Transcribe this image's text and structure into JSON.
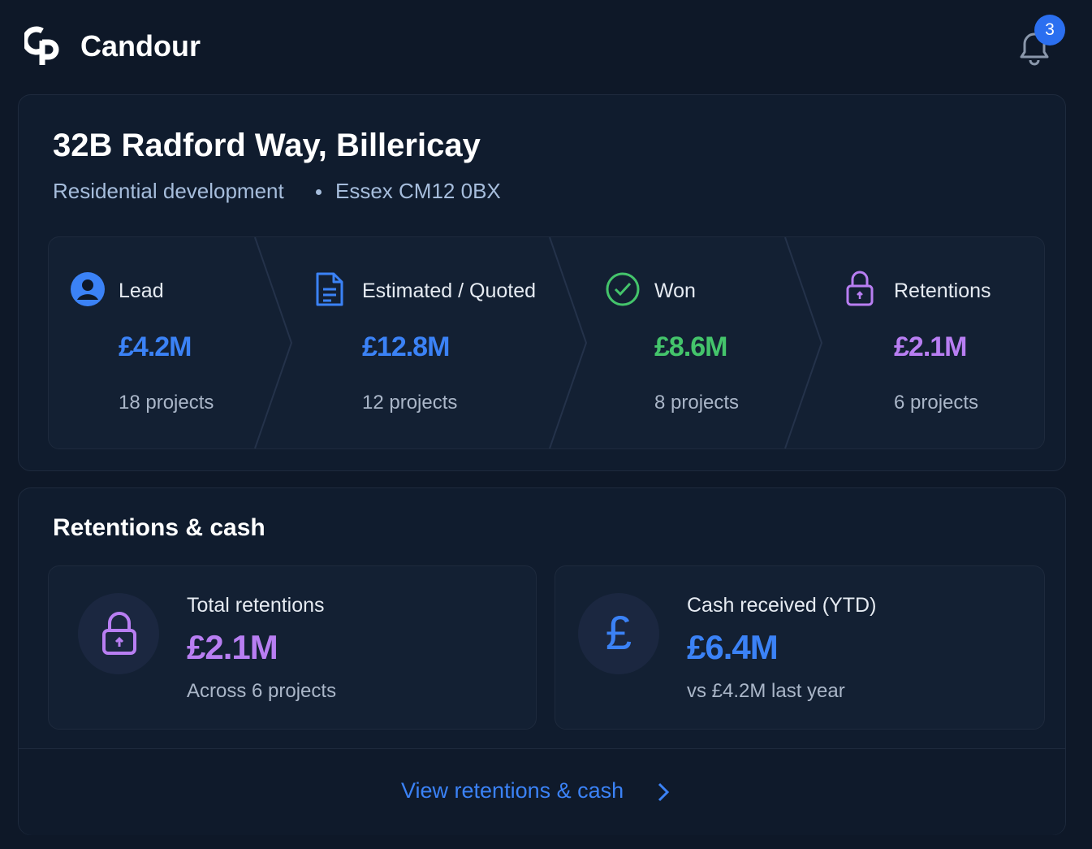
{
  "header": {
    "brand": "Candour",
    "notification_count": "3"
  },
  "project": {
    "title": "32B Radford Way, Billericay",
    "type": "Residential development",
    "location": "Essex CM12 0BX",
    "pipeline": [
      {
        "label": "Lead",
        "value": "£4.2M",
        "projects": "18 projects"
      },
      {
        "label": "Estimated / Quoted",
        "value": "£12.8M",
        "projects": "12 projects"
      },
      {
        "label": "Won",
        "value": "£8.6M",
        "projects": "8 projects"
      },
      {
        "label": "Retentions",
        "value": "£2.1M",
        "projects": "6 projects"
      }
    ]
  },
  "retentions_cash": {
    "title": "Retentions & cash",
    "cards": [
      {
        "label": "Total retentions",
        "value": "£2.1M",
        "note": "Across 6 projects"
      },
      {
        "icon": "£",
        "label": "Cash received (YTD)",
        "value": "£6.4M",
        "note": "vs £4.2M last year"
      }
    ],
    "link": "View retentions & cash"
  }
}
